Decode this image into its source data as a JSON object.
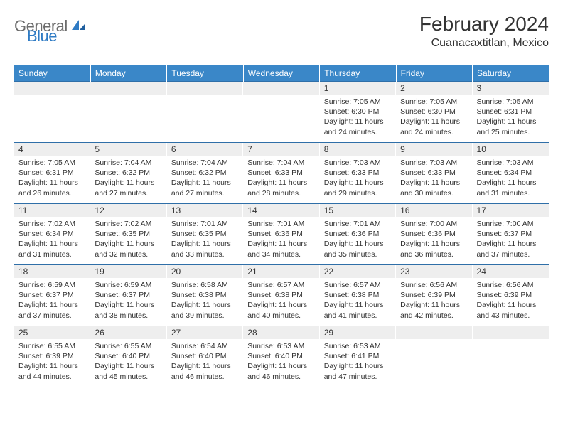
{
  "brand": {
    "name1": "General",
    "name2": "Blue"
  },
  "title": "February 2024",
  "location": "Cuanacaxtitlan, Mexico",
  "colors": {
    "header_bg": "#3a87c8",
    "header_text": "#ffffff",
    "daynum_bg": "#eeeeee",
    "row_border": "#2f6fa8",
    "body_text": "#333333",
    "brand_gray": "#6b6b6b",
    "brand_blue": "#2f7bc4",
    "page_bg": "#ffffff"
  },
  "days_of_week": [
    "Sunday",
    "Monday",
    "Tuesday",
    "Wednesday",
    "Thursday",
    "Friday",
    "Saturday"
  ],
  "weeks": [
    [
      null,
      null,
      null,
      null,
      {
        "n": "1",
        "sunrise": "7:05 AM",
        "sunset": "6:30 PM",
        "dl1": "Daylight: 11 hours",
        "dl2": "and 24 minutes."
      },
      {
        "n": "2",
        "sunrise": "7:05 AM",
        "sunset": "6:30 PM",
        "dl1": "Daylight: 11 hours",
        "dl2": "and 24 minutes."
      },
      {
        "n": "3",
        "sunrise": "7:05 AM",
        "sunset": "6:31 PM",
        "dl1": "Daylight: 11 hours",
        "dl2": "and 25 minutes."
      }
    ],
    [
      {
        "n": "4",
        "sunrise": "7:05 AM",
        "sunset": "6:31 PM",
        "dl1": "Daylight: 11 hours",
        "dl2": "and 26 minutes."
      },
      {
        "n": "5",
        "sunrise": "7:04 AM",
        "sunset": "6:32 PM",
        "dl1": "Daylight: 11 hours",
        "dl2": "and 27 minutes."
      },
      {
        "n": "6",
        "sunrise": "7:04 AM",
        "sunset": "6:32 PM",
        "dl1": "Daylight: 11 hours",
        "dl2": "and 27 minutes."
      },
      {
        "n": "7",
        "sunrise": "7:04 AM",
        "sunset": "6:33 PM",
        "dl1": "Daylight: 11 hours",
        "dl2": "and 28 minutes."
      },
      {
        "n": "8",
        "sunrise": "7:03 AM",
        "sunset": "6:33 PM",
        "dl1": "Daylight: 11 hours",
        "dl2": "and 29 minutes."
      },
      {
        "n": "9",
        "sunrise": "7:03 AM",
        "sunset": "6:33 PM",
        "dl1": "Daylight: 11 hours",
        "dl2": "and 30 minutes."
      },
      {
        "n": "10",
        "sunrise": "7:03 AM",
        "sunset": "6:34 PM",
        "dl1": "Daylight: 11 hours",
        "dl2": "and 31 minutes."
      }
    ],
    [
      {
        "n": "11",
        "sunrise": "7:02 AM",
        "sunset": "6:34 PM",
        "dl1": "Daylight: 11 hours",
        "dl2": "and 31 minutes."
      },
      {
        "n": "12",
        "sunrise": "7:02 AM",
        "sunset": "6:35 PM",
        "dl1": "Daylight: 11 hours",
        "dl2": "and 32 minutes."
      },
      {
        "n": "13",
        "sunrise": "7:01 AM",
        "sunset": "6:35 PM",
        "dl1": "Daylight: 11 hours",
        "dl2": "and 33 minutes."
      },
      {
        "n": "14",
        "sunrise": "7:01 AM",
        "sunset": "6:36 PM",
        "dl1": "Daylight: 11 hours",
        "dl2": "and 34 minutes."
      },
      {
        "n": "15",
        "sunrise": "7:01 AM",
        "sunset": "6:36 PM",
        "dl1": "Daylight: 11 hours",
        "dl2": "and 35 minutes."
      },
      {
        "n": "16",
        "sunrise": "7:00 AM",
        "sunset": "6:36 PM",
        "dl1": "Daylight: 11 hours",
        "dl2": "and 36 minutes."
      },
      {
        "n": "17",
        "sunrise": "7:00 AM",
        "sunset": "6:37 PM",
        "dl1": "Daylight: 11 hours",
        "dl2": "and 37 minutes."
      }
    ],
    [
      {
        "n": "18",
        "sunrise": "6:59 AM",
        "sunset": "6:37 PM",
        "dl1": "Daylight: 11 hours",
        "dl2": "and 37 minutes."
      },
      {
        "n": "19",
        "sunrise": "6:59 AM",
        "sunset": "6:37 PM",
        "dl1": "Daylight: 11 hours",
        "dl2": "and 38 minutes."
      },
      {
        "n": "20",
        "sunrise": "6:58 AM",
        "sunset": "6:38 PM",
        "dl1": "Daylight: 11 hours",
        "dl2": "and 39 minutes."
      },
      {
        "n": "21",
        "sunrise": "6:57 AM",
        "sunset": "6:38 PM",
        "dl1": "Daylight: 11 hours",
        "dl2": "and 40 minutes."
      },
      {
        "n": "22",
        "sunrise": "6:57 AM",
        "sunset": "6:38 PM",
        "dl1": "Daylight: 11 hours",
        "dl2": "and 41 minutes."
      },
      {
        "n": "23",
        "sunrise": "6:56 AM",
        "sunset": "6:39 PM",
        "dl1": "Daylight: 11 hours",
        "dl2": "and 42 minutes."
      },
      {
        "n": "24",
        "sunrise": "6:56 AM",
        "sunset": "6:39 PM",
        "dl1": "Daylight: 11 hours",
        "dl2": "and 43 minutes."
      }
    ],
    [
      {
        "n": "25",
        "sunrise": "6:55 AM",
        "sunset": "6:39 PM",
        "dl1": "Daylight: 11 hours",
        "dl2": "and 44 minutes."
      },
      {
        "n": "26",
        "sunrise": "6:55 AM",
        "sunset": "6:40 PM",
        "dl1": "Daylight: 11 hours",
        "dl2": "and 45 minutes."
      },
      {
        "n": "27",
        "sunrise": "6:54 AM",
        "sunset": "6:40 PM",
        "dl1": "Daylight: 11 hours",
        "dl2": "and 46 minutes."
      },
      {
        "n": "28",
        "sunrise": "6:53 AM",
        "sunset": "6:40 PM",
        "dl1": "Daylight: 11 hours",
        "dl2": "and 46 minutes."
      },
      {
        "n": "29",
        "sunrise": "6:53 AM",
        "sunset": "6:41 PM",
        "dl1": "Daylight: 11 hours",
        "dl2": "and 47 minutes."
      },
      null,
      null
    ]
  ],
  "labels": {
    "sunrise": "Sunrise:",
    "sunset": "Sunset:"
  }
}
